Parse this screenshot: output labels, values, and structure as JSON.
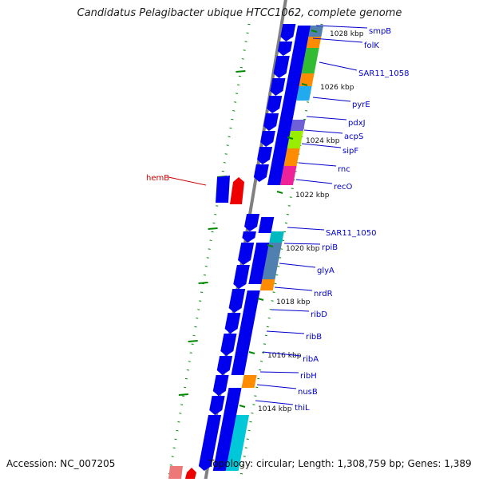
{
  "title": "Candidatus Pelagibacter ubique HTCC1062, complete genome",
  "footer": {
    "accession": "Accession: NC_007205",
    "topology": "Topology: circular; Length: 1,308,759 bp; Genes: 1,389"
  },
  "colors": {
    "gene_blue": "#0000ee",
    "gene_red": "#ee0000",
    "label_blue": "#0000cc",
    "label_red": "#cc0000",
    "backbone": "#808080",
    "tick_green": "#008800",
    "cyan": "#00c8d8",
    "teal": "#00b8c0",
    "orange": "#ff8c00",
    "green": "#33bb33",
    "lime": "#99ee00",
    "purple": "#7060d8",
    "magenta": "#ee2299",
    "steel": "#5080b0",
    "skyblue": "#22aaee"
  },
  "ticks": [
    {
      "label": "1028 kbp"
    },
    {
      "label": "1026 kbp"
    },
    {
      "label": "1024 kbp"
    },
    {
      "label": "1022 kbp"
    },
    {
      "label": "1020 kbp"
    },
    {
      "label": "1018 kbp"
    },
    {
      "label": "1016 kbp"
    },
    {
      "label": "1014 kbp"
    }
  ],
  "gene_labels": [
    {
      "name": "smpB",
      "strand": "+"
    },
    {
      "name": "folK",
      "strand": "+"
    },
    {
      "name": "SAR11_1058",
      "strand": "+"
    },
    {
      "name": "pyrE",
      "strand": "+"
    },
    {
      "name": "pdxJ",
      "strand": "+"
    },
    {
      "name": "acpS",
      "strand": "+"
    },
    {
      "name": "sipF",
      "strand": "+"
    },
    {
      "name": "rnc",
      "strand": "+"
    },
    {
      "name": "recO",
      "strand": "+"
    },
    {
      "name": "hemB",
      "strand": "-"
    },
    {
      "name": "SAR11_1050",
      "strand": "+"
    },
    {
      "name": "rpiB",
      "strand": "+"
    },
    {
      "name": "glyA",
      "strand": "+"
    },
    {
      "name": "nrdR",
      "strand": "+"
    },
    {
      "name": "ribD",
      "strand": "+"
    },
    {
      "name": "ribB",
      "strand": "+"
    },
    {
      "name": "ribA",
      "strand": "+"
    },
    {
      "name": "ribH",
      "strand": "+"
    },
    {
      "name": "nusB",
      "strand": "+"
    },
    {
      "name": "thiL",
      "strand": "+"
    }
  ]
}
